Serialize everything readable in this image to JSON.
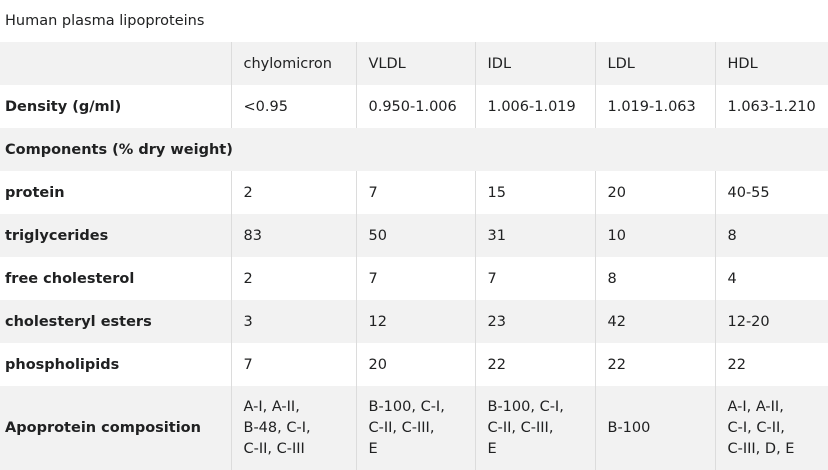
{
  "caption": "Human plasma lipoproteins",
  "columns": [
    "",
    "chylomicron",
    "VLDL",
    "IDL",
    "LDL",
    "HDL"
  ],
  "density": {
    "label": "Density (g/ml)",
    "values": [
      "<0.95",
      "0.950-1.006",
      "1.006-1.019",
      "1.019-1.063",
      "1.063-1.210"
    ]
  },
  "components_header": "Components (% dry weight)",
  "rows": [
    {
      "label": "protein",
      "values": [
        "2",
        "7",
        "15",
        "20",
        "40-55"
      ]
    },
    {
      "label": "triglycerides",
      "values": [
        "83",
        "50",
        "31",
        "10",
        "8"
      ]
    },
    {
      "label": "free cholesterol",
      "values": [
        "2",
        "7",
        "7",
        "8",
        "4"
      ]
    },
    {
      "label": "cholesteryl esters",
      "values": [
        "3",
        "12",
        "23",
        "42",
        "12-20"
      ]
    },
    {
      "label": "phospholipids",
      "values": [
        "7",
        "20",
        "22",
        "22",
        "22"
      ]
    }
  ],
  "apoprotein": {
    "label": "Apoprotein composition",
    "values": [
      [
        "A-I, A-II,",
        "B-48, C-I,",
        "C-II, C-III"
      ],
      [
        "B-100, C-I,",
        "C-II, C-III,",
        "E"
      ],
      [
        "B-100, C-I,",
        "C-II, C-III,",
        "E"
      ],
      [
        "B-100"
      ],
      [
        "A-I, A-II,",
        "C-I, C-II,",
        "C-III, D, E"
      ]
    ]
  }
}
